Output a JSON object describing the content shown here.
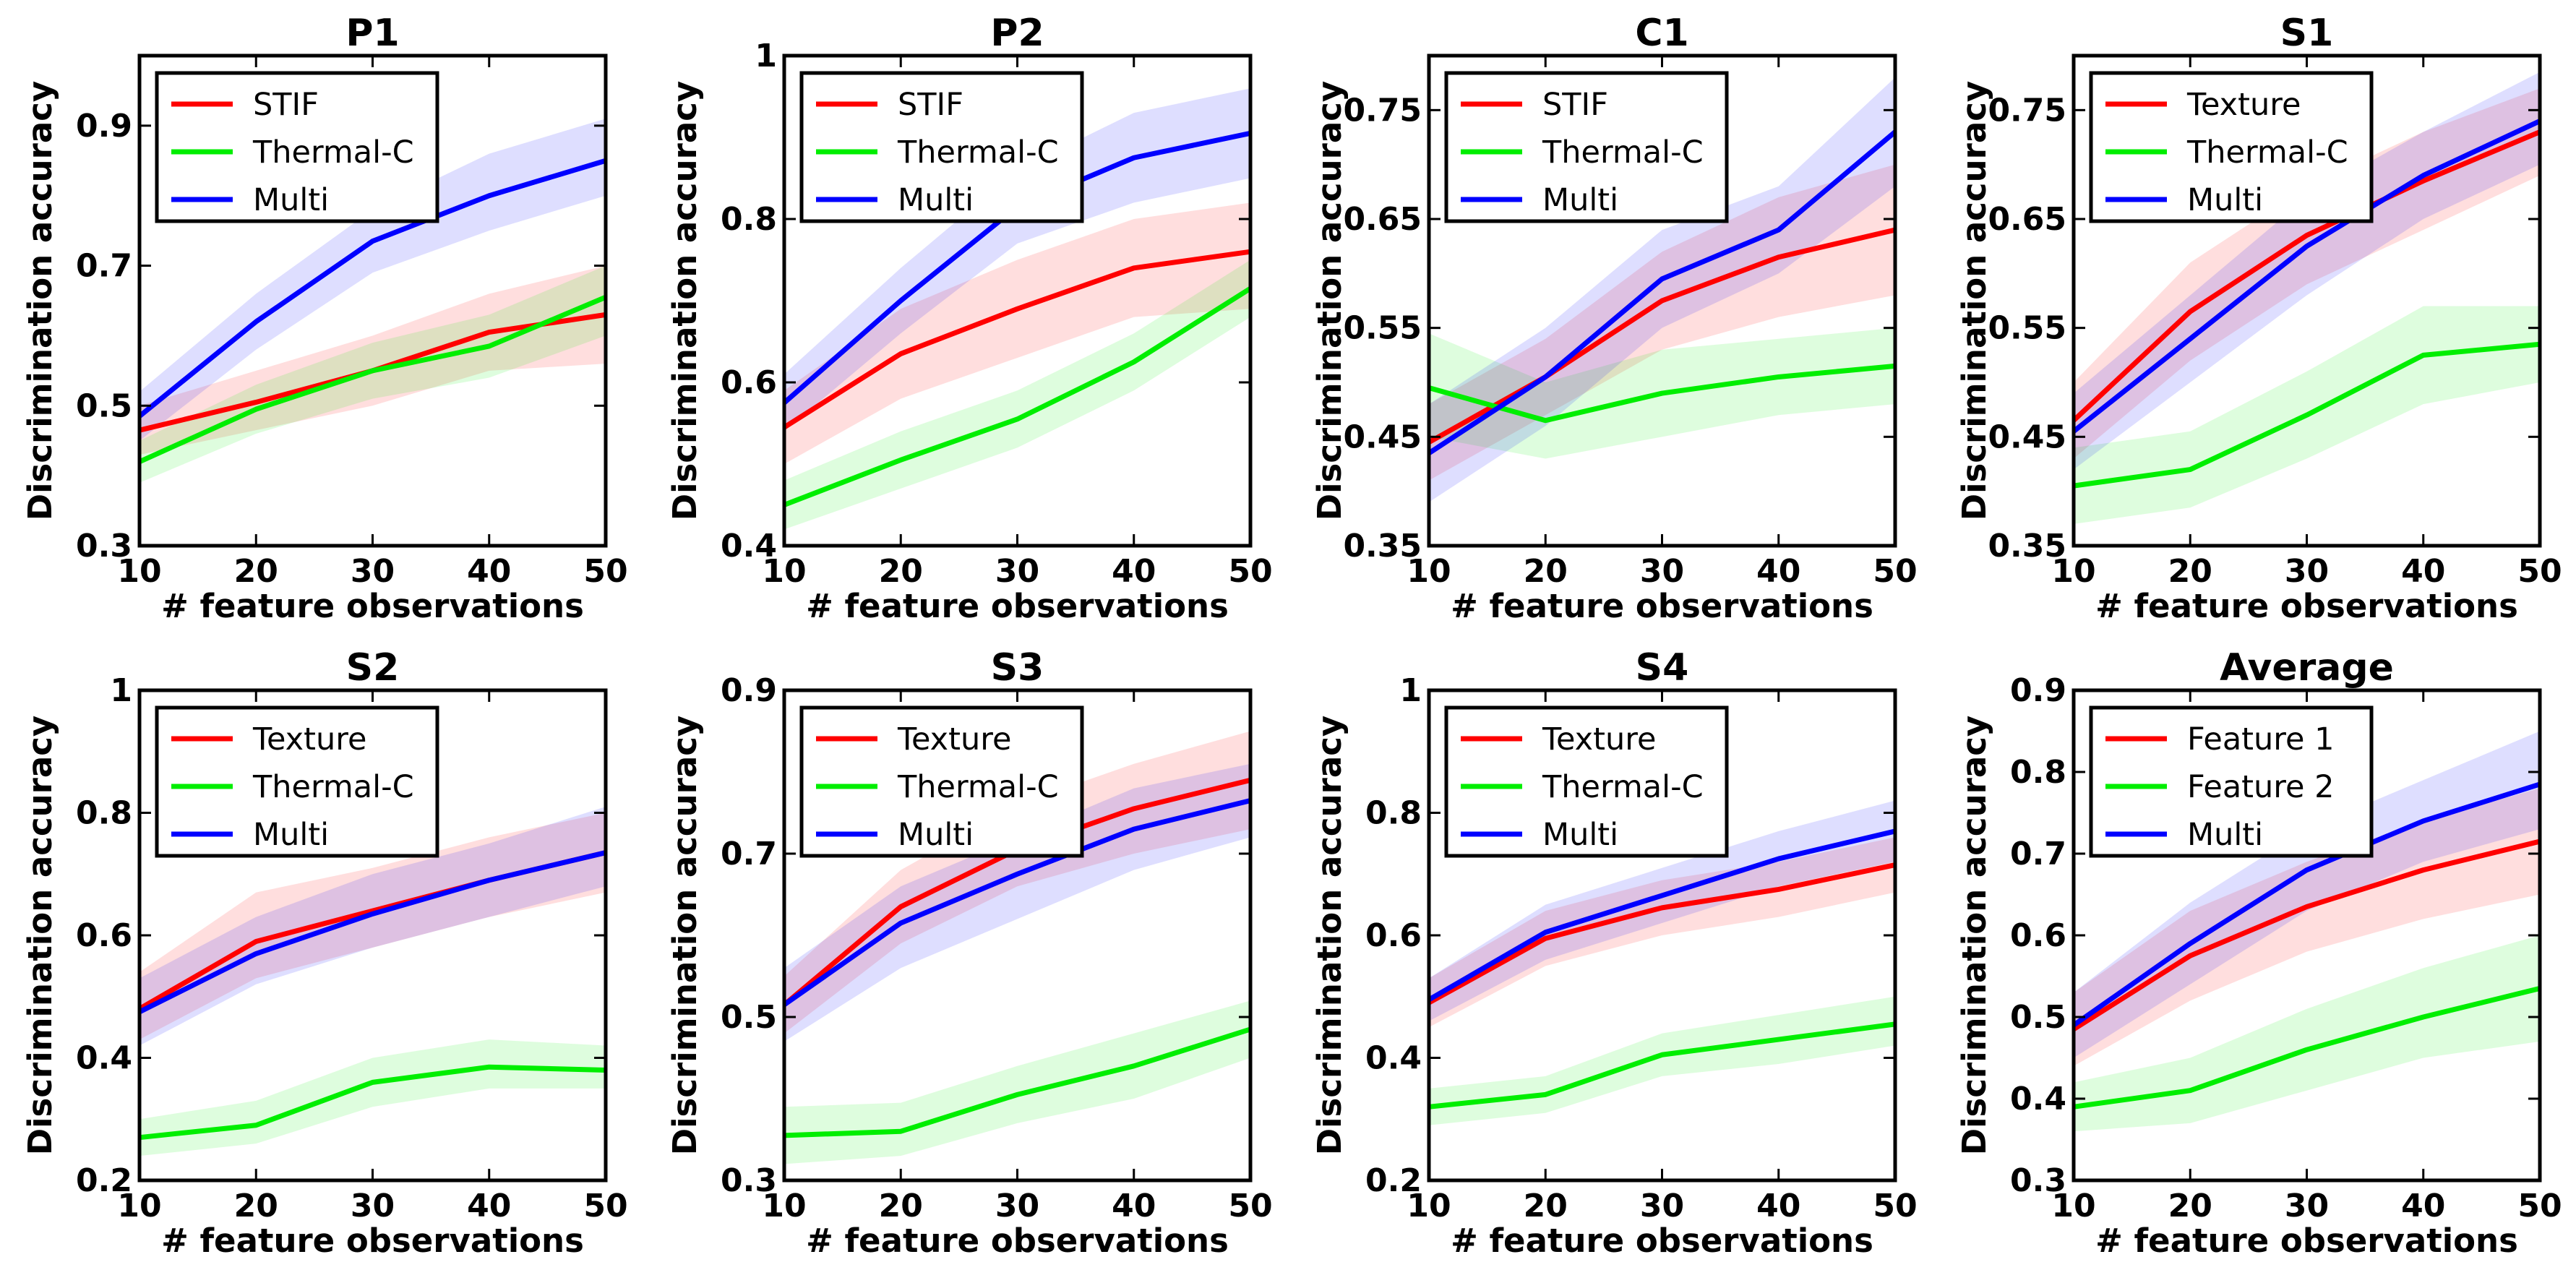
{
  "figure": {
    "xlabel": "# feature observations",
    "ylabel": "Discrimination accuracy"
  },
  "colors": {
    "red": "#ff0000",
    "green": "#00ee00",
    "blue": "#0000ff"
  },
  "chart_data": [
    {
      "type": "line",
      "title": "P1",
      "xlabel": "# feature observations",
      "ylabel": "Discrimination accuracy",
      "x": [
        10,
        20,
        30,
        40,
        50
      ],
      "xlim": [
        10,
        50
      ],
      "ylim": [
        0.3,
        1.0
      ],
      "xticks": [
        10,
        20,
        30,
        40,
        50
      ],
      "yticks": [
        0.3,
        0.5,
        0.7,
        0.9
      ],
      "legend": "top-left",
      "series": [
        {
          "name": "STIF",
          "color": "red",
          "values": [
            0.465,
            0.505,
            0.55,
            0.605,
            0.63
          ],
          "lower": [
            0.43,
            0.465,
            0.5,
            0.55,
            0.56
          ],
          "upper": [
            0.5,
            0.55,
            0.6,
            0.66,
            0.7
          ]
        },
        {
          "name": "Thermal-C",
          "color": "green",
          "values": [
            0.42,
            0.495,
            0.55,
            0.585,
            0.655
          ],
          "lower": [
            0.39,
            0.46,
            0.51,
            0.54,
            0.6
          ],
          "upper": [
            0.45,
            0.53,
            0.59,
            0.63,
            0.7
          ]
        },
        {
          "name": "Multi",
          "color": "blue",
          "values": [
            0.485,
            0.62,
            0.735,
            0.8,
            0.85
          ],
          "lower": [
            0.45,
            0.58,
            0.69,
            0.75,
            0.8
          ],
          "upper": [
            0.52,
            0.66,
            0.78,
            0.86,
            0.91
          ]
        }
      ]
    },
    {
      "type": "line",
      "title": "P2",
      "xlabel": "# feature observations",
      "ylabel": "Discrimination accuracy",
      "x": [
        10,
        20,
        30,
        40,
        50
      ],
      "xlim": [
        10,
        50
      ],
      "ylim": [
        0.4,
        1.0
      ],
      "xticks": [
        10,
        20,
        30,
        40,
        50
      ],
      "yticks": [
        0.4,
        0.6,
        0.8,
        1.0
      ],
      "legend": "top-left",
      "series": [
        {
          "name": "STIF",
          "color": "red",
          "values": [
            0.545,
            0.635,
            0.69,
            0.74,
            0.76
          ],
          "lower": [
            0.5,
            0.58,
            0.63,
            0.68,
            0.69
          ],
          "upper": [
            0.59,
            0.69,
            0.75,
            0.8,
            0.82
          ]
        },
        {
          "name": "Thermal-C",
          "color": "green",
          "values": [
            0.45,
            0.505,
            0.555,
            0.625,
            0.715
          ],
          "lower": [
            0.42,
            0.47,
            0.52,
            0.59,
            0.68
          ],
          "upper": [
            0.48,
            0.54,
            0.59,
            0.66,
            0.75
          ]
        },
        {
          "name": "Multi",
          "color": "blue",
          "values": [
            0.575,
            0.7,
            0.815,
            0.875,
            0.905
          ],
          "lower": [
            0.54,
            0.66,
            0.77,
            0.82,
            0.85
          ],
          "upper": [
            0.61,
            0.74,
            0.86,
            0.93,
            0.96
          ]
        }
      ]
    },
    {
      "type": "line",
      "title": "C1",
      "xlabel": "# feature observations",
      "ylabel": "Discrimination accuracy",
      "x": [
        10,
        20,
        30,
        40,
        50
      ],
      "xlim": [
        10,
        50
      ],
      "ylim": [
        0.35,
        0.8
      ],
      "xticks": [
        10,
        20,
        30,
        40,
        50
      ],
      "yticks": [
        0.35,
        0.45,
        0.55,
        0.65,
        0.75
      ],
      "legend": "top-left",
      "series": [
        {
          "name": "STIF",
          "color": "red",
          "values": [
            0.445,
            0.505,
            0.575,
            0.615,
            0.64
          ],
          "lower": [
            0.41,
            0.47,
            0.53,
            0.56,
            0.58
          ],
          "upper": [
            0.48,
            0.54,
            0.62,
            0.67,
            0.7
          ]
        },
        {
          "name": "Thermal-C",
          "color": "green",
          "values": [
            0.495,
            0.465,
            0.49,
            0.505,
            0.515
          ],
          "lower": [
            0.45,
            0.43,
            0.45,
            0.47,
            0.48
          ],
          "upper": [
            0.545,
            0.5,
            0.53,
            0.54,
            0.55
          ]
        },
        {
          "name": "Multi",
          "color": "blue",
          "values": [
            0.435,
            0.505,
            0.595,
            0.64,
            0.73
          ],
          "lower": [
            0.39,
            0.46,
            0.55,
            0.6,
            0.68
          ],
          "upper": [
            0.48,
            0.55,
            0.64,
            0.68,
            0.78
          ]
        }
      ]
    },
    {
      "type": "line",
      "title": "S1",
      "xlabel": "# feature observations",
      "ylabel": "Discrimination accuracy",
      "x": [
        10,
        20,
        30,
        40,
        50
      ],
      "xlim": [
        10,
        50
      ],
      "ylim": [
        0.35,
        0.8
      ],
      "xticks": [
        10,
        20,
        30,
        40,
        50
      ],
      "yticks": [
        0.35,
        0.45,
        0.55,
        0.65,
        0.75
      ],
      "legend": "top-left",
      "series": [
        {
          "name": "Texture",
          "color": "red",
          "values": [
            0.465,
            0.565,
            0.635,
            0.685,
            0.73
          ],
          "lower": [
            0.43,
            0.52,
            0.59,
            0.64,
            0.69
          ],
          "upper": [
            0.5,
            0.61,
            0.68,
            0.73,
            0.77
          ]
        },
        {
          "name": "Thermal-C",
          "color": "green",
          "values": [
            0.405,
            0.42,
            0.47,
            0.525,
            0.535
          ],
          "lower": [
            0.37,
            0.385,
            0.43,
            0.48,
            0.5
          ],
          "upper": [
            0.44,
            0.455,
            0.51,
            0.57,
            0.57
          ]
        },
        {
          "name": "Multi",
          "color": "blue",
          "values": [
            0.455,
            0.54,
            0.625,
            0.69,
            0.74
          ],
          "lower": [
            0.42,
            0.5,
            0.58,
            0.65,
            0.7
          ],
          "upper": [
            0.49,
            0.58,
            0.67,
            0.73,
            0.785
          ]
        }
      ]
    },
    {
      "type": "line",
      "title": "S2",
      "xlabel": "# feature observations",
      "ylabel": "Discrimination accuracy",
      "x": [
        10,
        20,
        30,
        40,
        50
      ],
      "xlim": [
        10,
        50
      ],
      "ylim": [
        0.2,
        1.0
      ],
      "xticks": [
        10,
        20,
        30,
        40,
        50
      ],
      "yticks": [
        0.2,
        0.4,
        0.6,
        0.8,
        1.0
      ],
      "legend": "top-left",
      "series": [
        {
          "name": "Texture",
          "color": "red",
          "values": [
            0.48,
            0.59,
            0.64,
            0.69,
            0.735
          ],
          "lower": [
            0.43,
            0.53,
            0.58,
            0.63,
            0.67
          ],
          "upper": [
            0.54,
            0.67,
            0.71,
            0.76,
            0.8
          ]
        },
        {
          "name": "Thermal-C",
          "color": "green",
          "values": [
            0.27,
            0.29,
            0.36,
            0.385,
            0.38
          ],
          "lower": [
            0.24,
            0.26,
            0.32,
            0.35,
            0.35
          ],
          "upper": [
            0.3,
            0.33,
            0.4,
            0.43,
            0.42
          ]
        },
        {
          "name": "Multi",
          "color": "blue",
          "values": [
            0.475,
            0.57,
            0.635,
            0.69,
            0.735
          ],
          "lower": [
            0.42,
            0.52,
            0.58,
            0.63,
            0.68
          ],
          "upper": [
            0.53,
            0.63,
            0.7,
            0.75,
            0.81
          ]
        }
      ]
    },
    {
      "type": "line",
      "title": "S3",
      "xlabel": "# feature observations",
      "ylabel": "Discrimination accuracy",
      "x": [
        10,
        20,
        30,
        40,
        50
      ],
      "xlim": [
        10,
        50
      ],
      "ylim": [
        0.3,
        0.9
      ],
      "xticks": [
        10,
        20,
        30,
        40,
        50
      ],
      "yticks": [
        0.3,
        0.5,
        0.7,
        0.9
      ],
      "legend": "top-left",
      "series": [
        {
          "name": "Texture",
          "color": "red",
          "values": [
            0.515,
            0.635,
            0.705,
            0.755,
            0.79
          ],
          "lower": [
            0.48,
            0.59,
            0.66,
            0.7,
            0.73
          ],
          "upper": [
            0.55,
            0.68,
            0.76,
            0.81,
            0.85
          ]
        },
        {
          "name": "Thermal-C",
          "color": "green",
          "values": [
            0.355,
            0.36,
            0.405,
            0.44,
            0.485
          ],
          "lower": [
            0.32,
            0.33,
            0.37,
            0.4,
            0.45
          ],
          "upper": [
            0.39,
            0.395,
            0.44,
            0.48,
            0.52
          ]
        },
        {
          "name": "Multi",
          "color": "blue",
          "values": [
            0.515,
            0.615,
            0.675,
            0.73,
            0.765
          ],
          "lower": [
            0.47,
            0.56,
            0.62,
            0.68,
            0.72
          ],
          "upper": [
            0.56,
            0.66,
            0.72,
            0.78,
            0.81
          ]
        }
      ]
    },
    {
      "type": "line",
      "title": "S4",
      "xlabel": "# feature observations",
      "ylabel": "Discrimination accuracy",
      "x": [
        10,
        20,
        30,
        40,
        50
      ],
      "xlim": [
        10,
        50
      ],
      "ylim": [
        0.2,
        1.0
      ],
      "xticks": [
        10,
        20,
        30,
        40,
        50
      ],
      "yticks": [
        0.2,
        0.4,
        0.6,
        0.8,
        1.0
      ],
      "legend": "top-left",
      "series": [
        {
          "name": "Texture",
          "color": "red",
          "values": [
            0.49,
            0.595,
            0.645,
            0.675,
            0.715
          ],
          "lower": [
            0.45,
            0.55,
            0.6,
            0.63,
            0.67
          ],
          "upper": [
            0.53,
            0.64,
            0.69,
            0.72,
            0.76
          ]
        },
        {
          "name": "Thermal-C",
          "color": "green",
          "values": [
            0.32,
            0.34,
            0.405,
            0.43,
            0.455
          ],
          "lower": [
            0.29,
            0.31,
            0.37,
            0.39,
            0.42
          ],
          "upper": [
            0.35,
            0.37,
            0.44,
            0.47,
            0.5
          ]
        },
        {
          "name": "Multi",
          "color": "blue",
          "values": [
            0.495,
            0.605,
            0.665,
            0.725,
            0.77
          ],
          "lower": [
            0.46,
            0.56,
            0.62,
            0.68,
            0.72
          ],
          "upper": [
            0.53,
            0.65,
            0.71,
            0.77,
            0.82
          ]
        }
      ]
    },
    {
      "type": "line",
      "title": "Average",
      "xlabel": "# feature observations",
      "ylabel": "Discrimination accuracy",
      "x": [
        10,
        20,
        30,
        40,
        50
      ],
      "xlim": [
        10,
        50
      ],
      "ylim": [
        0.3,
        0.9
      ],
      "xticks": [
        10,
        20,
        30,
        40,
        50
      ],
      "yticks": [
        0.3,
        0.4,
        0.5,
        0.6,
        0.7,
        0.8,
        0.9
      ],
      "legend": "top-left",
      "series": [
        {
          "name": "Feature 1",
          "color": "red",
          "values": [
            0.485,
            0.575,
            0.635,
            0.68,
            0.715
          ],
          "lower": [
            0.44,
            0.52,
            0.58,
            0.62,
            0.65
          ],
          "upper": [
            0.53,
            0.63,
            0.69,
            0.74,
            0.78
          ]
        },
        {
          "name": "Feature 2",
          "color": "green",
          "values": [
            0.39,
            0.41,
            0.46,
            0.5,
            0.535
          ],
          "lower": [
            0.36,
            0.37,
            0.41,
            0.45,
            0.47
          ],
          "upper": [
            0.42,
            0.45,
            0.51,
            0.56,
            0.6
          ]
        },
        {
          "name": "Multi",
          "color": "blue",
          "values": [
            0.49,
            0.59,
            0.68,
            0.74,
            0.785
          ],
          "lower": [
            0.45,
            0.54,
            0.63,
            0.69,
            0.73
          ],
          "upper": [
            0.53,
            0.64,
            0.73,
            0.79,
            0.85
          ]
        }
      ]
    }
  ]
}
